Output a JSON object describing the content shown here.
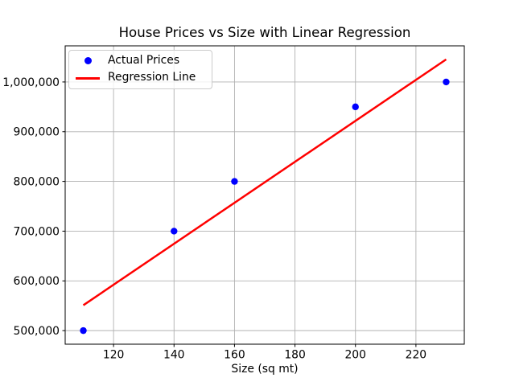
{
  "chart_data": {
    "type": "scatter",
    "title": "House Prices vs Size with Linear Regression",
    "xlabel": "Size (sq mt)",
    "ylabel": "",
    "series": [
      {
        "name": "Actual Prices",
        "kind": "scatter",
        "color": "#0000ff",
        "x": [
          110,
          140,
          160,
          200,
          230
        ],
        "y": [
          500000,
          700000,
          800000,
          950000,
          1000000
        ]
      },
      {
        "name": "Regression Line",
        "kind": "line",
        "color": "#ff0000",
        "x": [
          110,
          230
        ],
        "y": [
          551101,
          1045374
        ]
      }
    ],
    "xticks": [
      120,
      140,
      160,
      180,
      200,
      220
    ],
    "xtick_labels": [
      "120",
      "140",
      "160",
      "180",
      "200",
      "220"
    ],
    "yticks": [
      500000,
      600000,
      700000,
      800000,
      900000,
      1000000
    ],
    "ytick_labels": [
      "500,000",
      "600,000",
      "700,000",
      "800,000",
      "900,000",
      "1,000,000"
    ],
    "xlim": [
      104,
      236
    ],
    "ylim": [
      472731,
      1072643
    ],
    "grid": true,
    "grid_color": "#b0b0b0",
    "axes_color": "#000000",
    "background_color": "#ffffff",
    "legend": {
      "position": "upper left",
      "items": [
        {
          "label": "Actual Prices",
          "marker": "dot",
          "color": "#0000ff"
        },
        {
          "label": "Regression Line",
          "marker": "line",
          "color": "#ff0000"
        }
      ]
    }
  }
}
